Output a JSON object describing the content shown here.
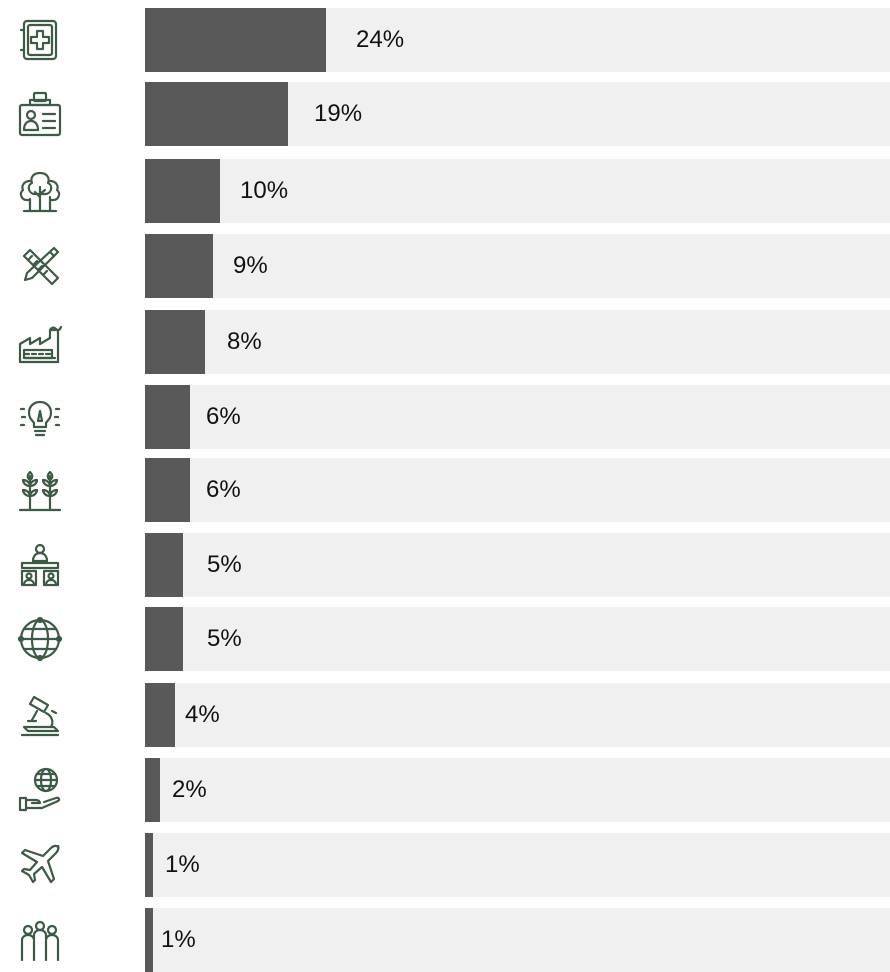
{
  "chart_data": {
    "type": "bar",
    "orientation": "horizontal",
    "xlim": [
      0,
      100
    ],
    "items": [
      {
        "icon": "medical-kit-icon",
        "value": 24,
        "label": "24%"
      },
      {
        "icon": "id-badge-icon",
        "value": 19,
        "label": "19%"
      },
      {
        "icon": "trees-icon",
        "value": 10,
        "label": "10%"
      },
      {
        "icon": "pencil-ruler-icon",
        "value": 9,
        "label": "9%"
      },
      {
        "icon": "factory-icon",
        "value": 8,
        "label": "8%"
      },
      {
        "icon": "lightbulb-idea-icon",
        "value": 6,
        "label": "6%"
      },
      {
        "icon": "wheat-icon",
        "value": 6,
        "label": "6%"
      },
      {
        "icon": "meeting-icon",
        "value": 5,
        "label": "5%"
      },
      {
        "icon": "globe-network-icon",
        "value": 5,
        "label": "5%"
      },
      {
        "icon": "microscope-icon",
        "value": 4,
        "label": "4%"
      },
      {
        "icon": "globe-hand-icon",
        "value": 2,
        "label": "2%"
      },
      {
        "icon": "airplane-icon",
        "value": 1,
        "label": "1%"
      },
      {
        "icon": "people-group-icon",
        "value": 1,
        "label": "1%"
      }
    ]
  },
  "colors": {
    "bar": "#595959",
    "track": "#f0f0f0",
    "icon": "#3d5a45"
  }
}
